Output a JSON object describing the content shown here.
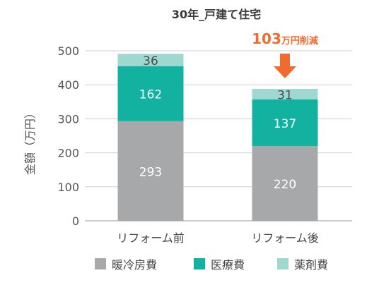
{
  "chart_data": {
    "type": "bar",
    "stacked": true,
    "title": "30年_戸建て住宅",
    "ylabel": "金額（万円）",
    "ylim": [
      0,
      500
    ],
    "yticks": [
      0,
      100,
      200,
      300,
      400,
      500
    ],
    "grid": true,
    "categories": [
      "リフォーム前",
      "リフォーム後"
    ],
    "series": [
      {
        "name": "暖冷房費",
        "values": [
          293,
          220
        ],
        "color": "#a7a8aa",
        "label_color": "#ffffff"
      },
      {
        "name": "医療費",
        "values": [
          162,
          137
        ],
        "color": "#12b1a0",
        "label_color": "#ffffff"
      },
      {
        "name": "薬剤費",
        "values": [
          36,
          31
        ],
        "color": "#9ed8d0",
        "label_color": "#4a4a4a"
      }
    ],
    "annotation": {
      "number": "103",
      "unit_text": "万円削減",
      "color": "#f26b2e"
    },
    "legend_position": "bottom"
  }
}
